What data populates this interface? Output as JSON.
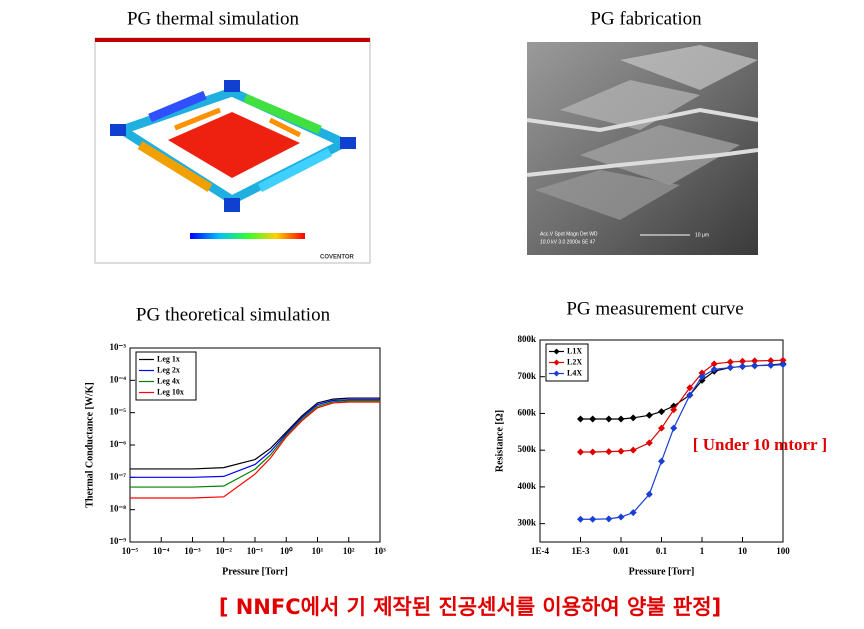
{
  "panels": {
    "thermal_simulation": {
      "title": "PG thermal simulation",
      "brand": "COVENTOR"
    },
    "fabrication": {
      "title": "PG fabrication",
      "sem_info_top": "Acc.V  Spot Magn   Det  WD",
      "sem_info_bottom": "10.0 kV 3.0  2000x   SE   47",
      "scale_bar": "10 μm"
    }
  },
  "chart_data": [
    {
      "type": "line",
      "title": "PG theoretical simulation",
      "xlabel": "Pressure [Torr]",
      "ylabel": "Thermal Conductance [W/K]",
      "xscale": "log",
      "yscale": "log",
      "legend": "upper left",
      "markers": false,
      "xlim": [
        1e-05,
        1000
      ],
      "ylim": [
        1e-09,
        0.001
      ],
      "xticks": [
        {
          "value": 1e-05,
          "label": "10⁻⁵"
        },
        {
          "value": 0.0001,
          "label": "10⁻⁴"
        },
        {
          "value": 0.001,
          "label": "10⁻³"
        },
        {
          "value": 0.01,
          "label": "10⁻²"
        },
        {
          "value": 0.1,
          "label": "10⁻¹"
        },
        {
          "value": 1,
          "label": "10⁰"
        },
        {
          "value": 10,
          "label": "10¹"
        },
        {
          "value": 100,
          "label": "10²"
        },
        {
          "value": 1000,
          "label": "10³"
        }
      ],
      "yticks": [
        {
          "value": 1e-09,
          "label": "10⁻⁹"
        },
        {
          "value": 1e-08,
          "label": "10⁻⁸"
        },
        {
          "value": 1e-07,
          "label": "10⁻⁷"
        },
        {
          "value": 1e-06,
          "label": "10⁻⁶"
        },
        {
          "value": 1e-05,
          "label": "10⁻⁵"
        },
        {
          "value": 0.0001,
          "label": "10⁻⁴"
        },
        {
          "value": 0.001,
          "label": "10⁻³"
        }
      ],
      "x": [
        1e-05,
        0.0001,
        0.001,
        0.01,
        0.1,
        0.316,
        1,
        3.16,
        10,
        31.6,
        100,
        1000
      ],
      "series": [
        {
          "name": "Leg 1x",
          "color": "#000000",
          "values": [
            1.82e-07,
            1.82e-07,
            1.82e-07,
            2e-07,
            3.55e-07,
            7.9e-07,
            2.5e-06,
            7.9e-06,
            2e-05,
            2.63e-05,
            2.82e-05,
            2.82e-05
          ]
        },
        {
          "name": "Leg 2x",
          "color": "#0000ff",
          "values": [
            1e-07,
            1e-07,
            1e-07,
            1.07e-07,
            2.5e-07,
            6.3e-07,
            2.24e-06,
            7.1e-06,
            1.78e-05,
            2.4e-05,
            2.51e-05,
            2.51e-05
          ]
        },
        {
          "name": "Leg 4x",
          "color": "#008000",
          "values": [
            5e-08,
            5e-08,
            5e-08,
            5.4e-08,
            1.78e-07,
            5e-07,
            2e-06,
            6.3e-06,
            1.58e-05,
            2.19e-05,
            2.34e-05,
            2.34e-05
          ]
        },
        {
          "name": "Leg 10x",
          "color": "#ff0000",
          "values": [
            2.3e-08,
            2.3e-08,
            2.3e-08,
            2.5e-08,
            1.26e-07,
            4e-07,
            1.78e-06,
            5.6e-06,
            1.41e-05,
            2e-05,
            2.14e-05,
            2.14e-05
          ]
        }
      ]
    },
    {
      "type": "line",
      "title": "PG measurement  curve",
      "xlabel": "Pressure [Torr]",
      "ylabel": "Resistance [Ω]",
      "xscale": "log",
      "legend": "upper left",
      "markers": true,
      "annotation": "[ Under 10 mtorr ]",
      "xlim": [
        0.0001,
        100
      ],
      "ylim": [
        250000,
        800000
      ],
      "xticks": [
        {
          "value": 0.0001,
          "label": "1E-4"
        },
        {
          "value": 0.001,
          "label": "1E-3"
        },
        0.01,
        0.1,
        1,
        10,
        100
      ],
      "yticks": [
        {
          "value": 300000,
          "label": "300k"
        },
        {
          "value": 400000,
          "label": "400k"
        },
        {
          "value": 500000,
          "label": "500k"
        },
        {
          "value": 600000,
          "label": "600k"
        },
        {
          "value": 700000,
          "label": "700k"
        },
        {
          "value": 800000,
          "label": "800k"
        }
      ],
      "x": [
        0.001,
        0.002,
        0.005,
        0.01,
        0.02,
        0.05,
        0.1,
        0.2,
        0.5,
        1,
        2,
        5,
        10,
        20,
        50,
        100
      ],
      "series": [
        {
          "name": "L1X",
          "color": "#000000",
          "values": [
            585000,
            585000,
            585000,
            585000,
            588000,
            595000,
            605000,
            620000,
            650000,
            690000,
            715000,
            725000,
            728000,
            730000,
            732000,
            735000
          ]
        },
        {
          "name": "L2X",
          "color": "#e00000",
          "values": [
            495000,
            495000,
            496000,
            497000,
            500000,
            520000,
            560000,
            610000,
            670000,
            710000,
            735000,
            740000,
            742000,
            743000,
            744000,
            745000
          ]
        },
        {
          "name": "L4X",
          "color": "#1a3fd6",
          "values": [
            312000,
            312000,
            313000,
            318000,
            330000,
            380000,
            470000,
            560000,
            650000,
            700000,
            720000,
            725000,
            728000,
            730000,
            731000,
            733000
          ]
        }
      ]
    }
  ],
  "caption": "[ NNFC에서 기 제작된 진공센서를 이용하여 양불 판정]"
}
